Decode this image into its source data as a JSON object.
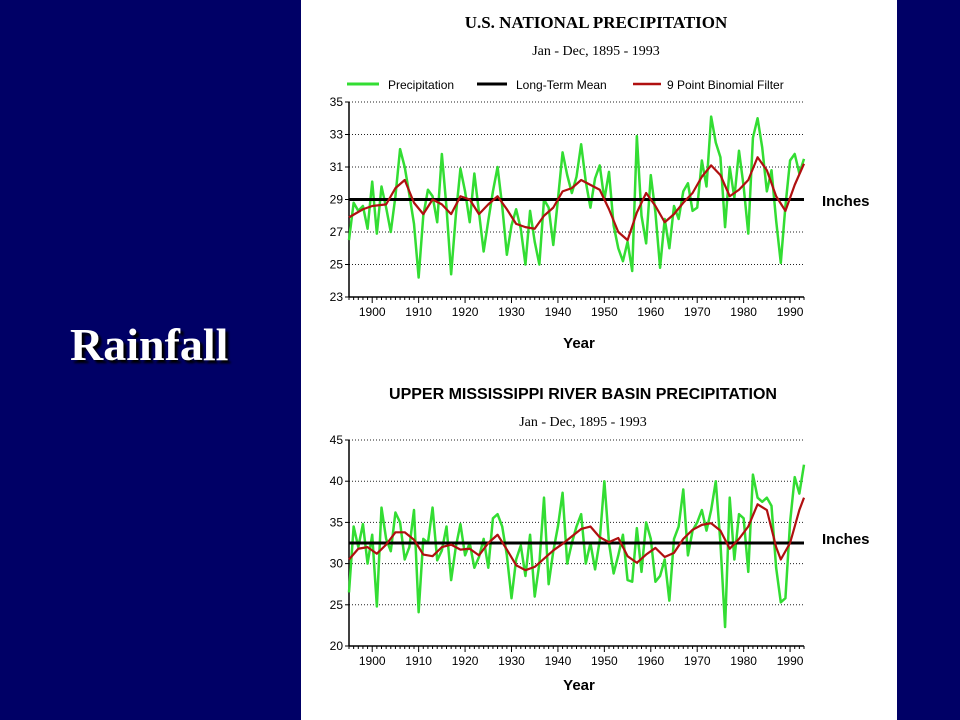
{
  "slide": {
    "title": "Rainfall"
  },
  "colors": {
    "background": "#000066",
    "panel": "#ffffff",
    "precipitation": "#33dd33",
    "mean": "#000000",
    "filter": "#b01010"
  },
  "chart_data": [
    {
      "type": "line",
      "title": "U.S. NATIONAL PRECIPITATION",
      "subtitle": "Jan - Dec, 1895 - 1993",
      "xlabel": "Year",
      "ylabel": "Inches",
      "xlim": [
        1895,
        1993
      ],
      "ylim": [
        23,
        35
      ],
      "yticks": [
        23,
        25,
        27,
        29,
        31,
        33,
        35
      ],
      "xticks": [
        1900,
        1910,
        1920,
        1930,
        1940,
        1950,
        1960,
        1970,
        1980,
        1990
      ],
      "grid": "horizontal dotted",
      "legend": "top",
      "mean": 29,
      "series": [
        {
          "name": "Precipitation",
          "x": [
            1895,
            1896,
            1897,
            1898,
            1899,
            1900,
            1901,
            1902,
            1903,
            1904,
            1905,
            1906,
            1907,
            1908,
            1909,
            1910,
            1911,
            1912,
            1913,
            1914,
            1915,
            1916,
            1917,
            1918,
            1919,
            1920,
            1921,
            1922,
            1923,
            1924,
            1925,
            1926,
            1927,
            1928,
            1929,
            1930,
            1931,
            1932,
            1933,
            1934,
            1935,
            1936,
            1937,
            1938,
            1939,
            1940,
            1941,
            1942,
            1943,
            1944,
            1945,
            1946,
            1947,
            1948,
            1949,
            1950,
            1951,
            1952,
            1953,
            1954,
            1955,
            1956,
            1957,
            1958,
            1959,
            1960,
            1961,
            1962,
            1963,
            1964,
            1965,
            1966,
            1967,
            1968,
            1969,
            1970,
            1971,
            1972,
            1973,
            1974,
            1975,
            1976,
            1977,
            1978,
            1979,
            1980,
            1981,
            1982,
            1983,
            1984,
            1985,
            1986,
            1987,
            1988,
            1989,
            1990,
            1991,
            1992,
            1993
          ],
          "values": [
            26.5,
            28.8,
            28.3,
            28.6,
            27.2,
            30.1,
            26.9,
            29.8,
            28.5,
            27.0,
            29.2,
            32.1,
            31.0,
            29.3,
            27.5,
            24.2,
            28.0,
            29.6,
            29.2,
            27.6,
            31.8,
            28.5,
            24.4,
            28.0,
            30.9,
            29.5,
            27.6,
            30.6,
            28.2,
            25.8,
            27.7,
            29.5,
            31.0,
            28.6,
            25.6,
            27.4,
            28.4,
            27.2,
            25.0,
            28.3,
            26.4,
            25.0,
            29.0,
            28.5,
            26.2,
            29.0,
            31.9,
            30.5,
            29.4,
            30.4,
            32.4,
            30.1,
            28.5,
            30.3,
            31.1,
            29.0,
            30.7,
            27.4,
            26.0,
            25.2,
            26.4,
            24.6,
            32.9,
            28.0,
            26.3,
            30.5,
            28.2,
            24.8,
            27.8,
            26.0,
            28.6,
            27.8,
            29.5,
            30.0,
            28.3,
            28.5,
            31.4,
            29.8,
            34.1,
            32.5,
            31.6,
            27.3,
            31.0,
            29.1,
            32.0,
            29.8,
            26.9,
            32.8,
            34.0,
            32.2,
            29.5,
            30.8,
            27.7,
            25.1,
            28.6,
            31.4,
            31.8,
            30.6,
            31.5
          ]
        },
        {
          "name": "Long-Term Mean",
          "values": [
            29,
            29
          ]
        },
        {
          "name": "9 Point Binomial Filter",
          "x": [
            1895,
            1898,
            1900,
            1903,
            1905,
            1907,
            1909,
            1911,
            1913,
            1915,
            1917,
            1919,
            1921,
            1923,
            1925,
            1927,
            1929,
            1931,
            1933,
            1935,
            1937,
            1939,
            1941,
            1943,
            1945,
            1947,
            1949,
            1951,
            1953,
            1955,
            1957,
            1959,
            1961,
            1963,
            1965,
            1967,
            1969,
            1971,
            1973,
            1975,
            1977,
            1979,
            1981,
            1983,
            1985,
            1987,
            1989,
            1991,
            1993
          ],
          "values": [
            27.9,
            28.4,
            28.6,
            28.7,
            29.7,
            30.2,
            28.8,
            28.1,
            29.0,
            28.7,
            28.1,
            29.2,
            29.0,
            28.1,
            28.7,
            29.2,
            28.4,
            27.5,
            27.3,
            27.2,
            28.0,
            28.5,
            29.5,
            29.7,
            30.2,
            29.9,
            29.6,
            28.4,
            27.0,
            26.5,
            28.2,
            29.4,
            28.6,
            27.6,
            28.1,
            28.8,
            29.4,
            30.4,
            31.1,
            30.5,
            29.2,
            29.6,
            30.2,
            31.6,
            30.8,
            29.2,
            28.3,
            29.9,
            31.2
          ]
        }
      ]
    },
    {
      "type": "line",
      "title": "UPPER MISSISSIPPI RIVER BASIN PRECIPITATION",
      "subtitle": "Jan - Dec, 1895 - 1993",
      "xlabel": "Year",
      "ylabel": "Inches",
      "xlim": [
        1895,
        1993
      ],
      "ylim": [
        20,
        45
      ],
      "yticks": [
        20,
        25,
        30,
        35,
        40,
        45
      ],
      "xticks": [
        1900,
        1910,
        1920,
        1930,
        1940,
        1950,
        1960,
        1970,
        1980,
        1990
      ],
      "grid": "horizontal dotted",
      "mean": 32.5,
      "series": [
        {
          "name": "Precipitation",
          "x": [
            1895,
            1896,
            1897,
            1898,
            1899,
            1900,
            1901,
            1902,
            1903,
            1904,
            1905,
            1906,
            1907,
            1908,
            1909,
            1910,
            1911,
            1912,
            1913,
            1914,
            1915,
            1916,
            1917,
            1918,
            1919,
            1920,
            1921,
            1922,
            1923,
            1924,
            1925,
            1926,
            1927,
            1928,
            1929,
            1930,
            1931,
            1932,
            1933,
            1934,
            1935,
            1936,
            1937,
            1938,
            1939,
            1940,
            1941,
            1942,
            1943,
            1944,
            1945,
            1946,
            1947,
            1948,
            1949,
            1950,
            1951,
            1952,
            1953,
            1954,
            1955,
            1956,
            1957,
            1958,
            1959,
            1960,
            1961,
            1962,
            1963,
            1964,
            1965,
            1966,
            1967,
            1968,
            1969,
            1970,
            1971,
            1972,
            1973,
            1974,
            1975,
            1976,
            1977,
            1978,
            1979,
            1980,
            1981,
            1982,
            1983,
            1984,
            1985,
            1986,
            1987,
            1988,
            1989,
            1990,
            1991,
            1992,
            1993
          ],
          "values": [
            26.5,
            34.5,
            32.0,
            34.8,
            30.0,
            33.5,
            24.8,
            36.8,
            33.0,
            31.5,
            36.2,
            35.0,
            30.5,
            32.0,
            36.5,
            24.1,
            33.0,
            32.5,
            36.8,
            30.4,
            31.6,
            34.5,
            28.0,
            32.0,
            34.8,
            31.0,
            32.5,
            29.5,
            30.8,
            33.0,
            29.5,
            35.5,
            36.0,
            34.5,
            31.0,
            25.8,
            30.5,
            32.2,
            28.5,
            33.5,
            26.0,
            30.0,
            38.0,
            27.5,
            31.5,
            34.5,
            38.6,
            30.0,
            32.5,
            34.5,
            36.0,
            30.0,
            32.5,
            29.3,
            32.8,
            40.0,
            32.5,
            28.8,
            31.0,
            33.5,
            28.0,
            27.8,
            34.3,
            29.0,
            35.0,
            33.0,
            27.8,
            28.5,
            30.5,
            25.5,
            33.0,
            34.5,
            39.0,
            31.0,
            34.0,
            35.0,
            36.5,
            34.0,
            36.5,
            40.0,
            32.5,
            22.3,
            38.0,
            30.5,
            36.0,
            35.5,
            29.0,
            40.8,
            38.0,
            37.5,
            38.0,
            37.0,
            29.5,
            25.3,
            25.8,
            35.0,
            40.5,
            38.5,
            42.0
          ]
        },
        {
          "name": "Long-Term Mean",
          "values": [
            32.5,
            32.5
          ]
        },
        {
          "name": "9 Point Binomial Filter",
          "x": [
            1895,
            1897,
            1899,
            1901,
            1903,
            1905,
            1907,
            1909,
            1911,
            1913,
            1915,
            1917,
            1919,
            1921,
            1923,
            1925,
            1927,
            1929,
            1931,
            1933,
            1935,
            1937,
            1939,
            1941,
            1943,
            1945,
            1947,
            1949,
            1951,
            1953,
            1955,
            1957,
            1959,
            1961,
            1963,
            1965,
            1967,
            1969,
            1971,
            1973,
            1975,
            1977,
            1979,
            1981,
            1983,
            1985,
            1987,
            1988,
            1990,
            1992,
            1993
          ],
          "values": [
            30.5,
            31.8,
            32.0,
            31.2,
            32.3,
            33.8,
            33.8,
            32.9,
            31.1,
            30.9,
            32.0,
            32.3,
            31.7,
            31.8,
            31.0,
            32.5,
            33.5,
            31.7,
            29.8,
            29.2,
            29.6,
            30.6,
            31.6,
            32.4,
            33.3,
            34.2,
            34.5,
            33.2,
            32.6,
            33.1,
            30.9,
            30.1,
            31.1,
            31.9,
            30.8,
            31.3,
            33.0,
            34.1,
            34.7,
            34.9,
            34.0,
            31.8,
            33.0,
            34.5,
            37.2,
            36.5,
            32.0,
            30.5,
            32.5,
            36.5,
            38.0
          ]
        }
      ]
    }
  ],
  "chart_text": {
    "top": {
      "title": "U.S. NATIONAL PRECIPITATION",
      "subtitle": "Jan - Dec, 1895 - 1993",
      "ylabel": "Inches",
      "xlabel": "Year",
      "legend": [
        "Precipitation",
        "Long-Term Mean",
        "9 Point Binomial Filter"
      ]
    },
    "bottom": {
      "title": "UPPER MISSISSIPPI RIVER BASIN PRECIPITATION",
      "subtitle": "Jan - Dec, 1895 - 1993",
      "ylabel": "Inches",
      "xlabel": "Year"
    }
  }
}
